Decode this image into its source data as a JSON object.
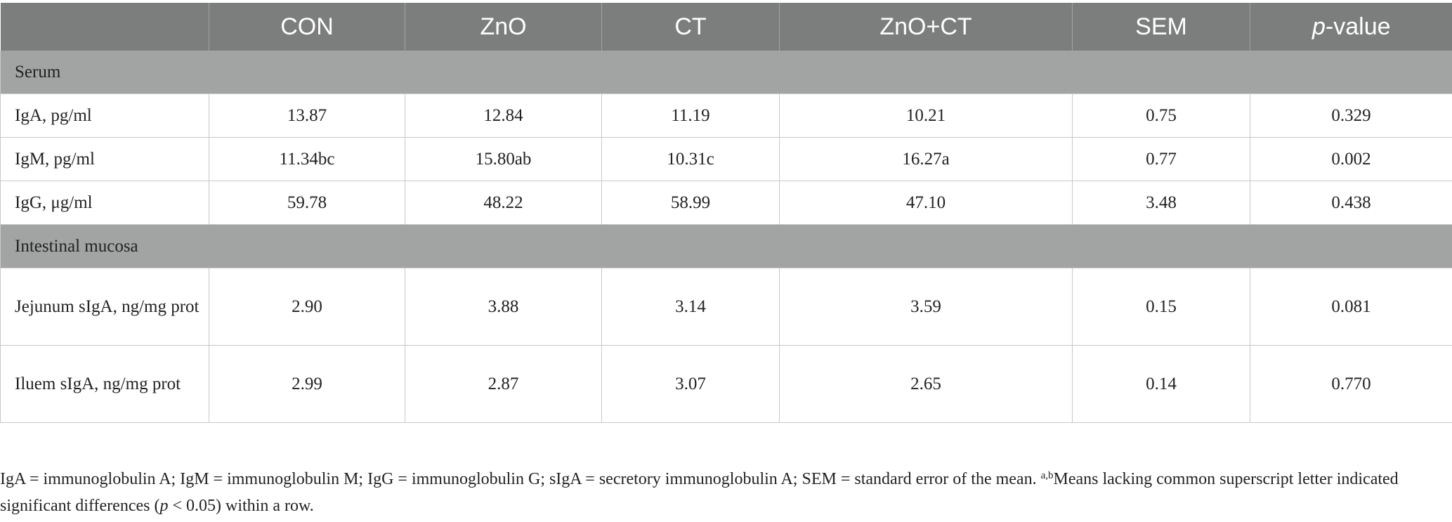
{
  "table": {
    "headers": [
      "",
      "CON",
      "ZnO",
      "CT",
      "ZnO+CT",
      "SEM"
    ],
    "pvalue_header": {
      "italic": "p",
      "rest": "-value"
    },
    "sections": [
      {
        "title": "Serum",
        "rows": [
          {
            "label": "IgA, pg/ml",
            "values": [
              "13.87",
              "12.84",
              "11.19",
              "10.21",
              "0.75",
              "0.329"
            ]
          },
          {
            "label": "IgM, pg/ml",
            "values": [
              "11.34bc",
              "15.80ab",
              "10.31c",
              "16.27a",
              "0.77",
              "0.002"
            ]
          },
          {
            "label": "IgG, μg/ml",
            "values": [
              "59.78",
              "48.22",
              "58.99",
              "47.10",
              "3.48",
              "0.438"
            ]
          }
        ]
      },
      {
        "title": "Intestinal mucosa",
        "rows": [
          {
            "label": "Jejunum sIgA, ng/mg prot",
            "values": [
              "2.90",
              "3.88",
              "3.14",
              "3.59",
              "0.15",
              "0.081"
            ]
          },
          {
            "label": "Iluem sIgA, ng/mg prot",
            "values": [
              "2.99",
              "2.87",
              "3.07",
              "2.65",
              "0.14",
              "0.770"
            ]
          }
        ]
      }
    ]
  },
  "footnote": {
    "part1": "IgA = immunoglobulin A; IgM = immunoglobulin M; IgG = immunoglobulin G; sIgA = secretory immunoglobulin A; SEM = standard error of the mean. ",
    "superscript": "a,b",
    "part2": "Means lacking common superscript letter indicated significant differences (",
    "p_italic": "p",
    "part3": " < 0.05) within a row."
  }
}
